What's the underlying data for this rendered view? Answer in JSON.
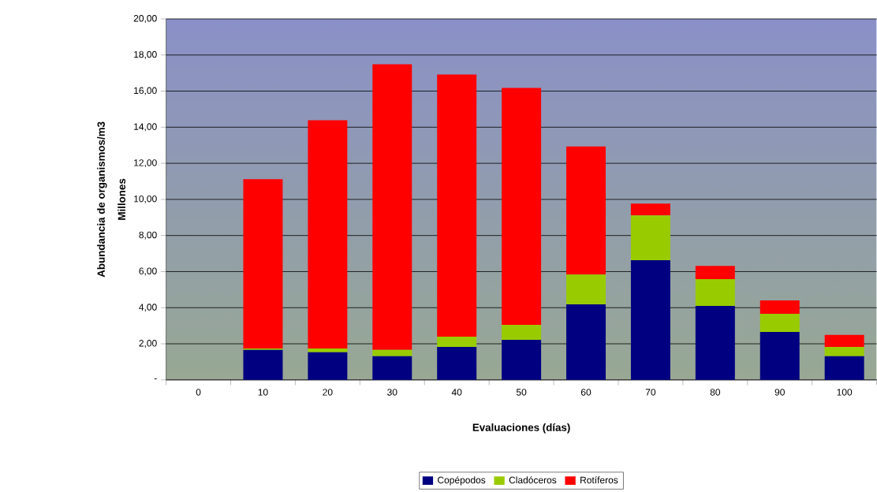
{
  "chart_data": {
    "type": "bar",
    "stacked": true,
    "xlabel": "Evaluaciones (días)",
    "ylabel": "Abundancia de organismos/m3",
    "annotations": [
      "Millones"
    ],
    "categories": [
      "0",
      "10",
      "20",
      "30",
      "40",
      "50",
      "60",
      "70",
      "80",
      "90",
      "100"
    ],
    "series": [
      {
        "name": "Copépodos",
        "color": "#000080",
        "values": [
          0,
          1.66,
          1.53,
          1.31,
          1.83,
          2.22,
          4.19,
          6.63,
          4.1,
          2.66,
          1.31
        ]
      },
      {
        "name": "Cladóceros",
        "color": "#99cc00",
        "values": [
          0,
          0.08,
          0.21,
          0.35,
          0.57,
          0.83,
          1.65,
          2.48,
          1.48,
          1.0,
          0.52
        ]
      },
      {
        "name": "Rotíferos",
        "color": "#ff0000",
        "values": [
          0,
          9.38,
          12.65,
          15.83,
          14.52,
          13.13,
          7.09,
          0.66,
          0.74,
          0.74,
          0.66
        ]
      }
    ],
    "ylim": [
      0,
      20
    ],
    "yticks": [
      {
        "value": 0,
        "label": "-"
      },
      {
        "value": 2,
        "label": "2,00"
      },
      {
        "value": 4,
        "label": "4,00"
      },
      {
        "value": 6,
        "label": "6,00"
      },
      {
        "value": 8,
        "label": "8,00"
      },
      {
        "value": 10,
        "label": "10,00"
      },
      {
        "value": 12,
        "label": "12,00"
      },
      {
        "value": 14,
        "label": "14,00"
      },
      {
        "value": 16,
        "label": "16,00"
      },
      {
        "value": 18,
        "label": "18,00"
      },
      {
        "value": 20,
        "label": "20,00"
      }
    ],
    "grid": "y",
    "legend": "bottom"
  }
}
